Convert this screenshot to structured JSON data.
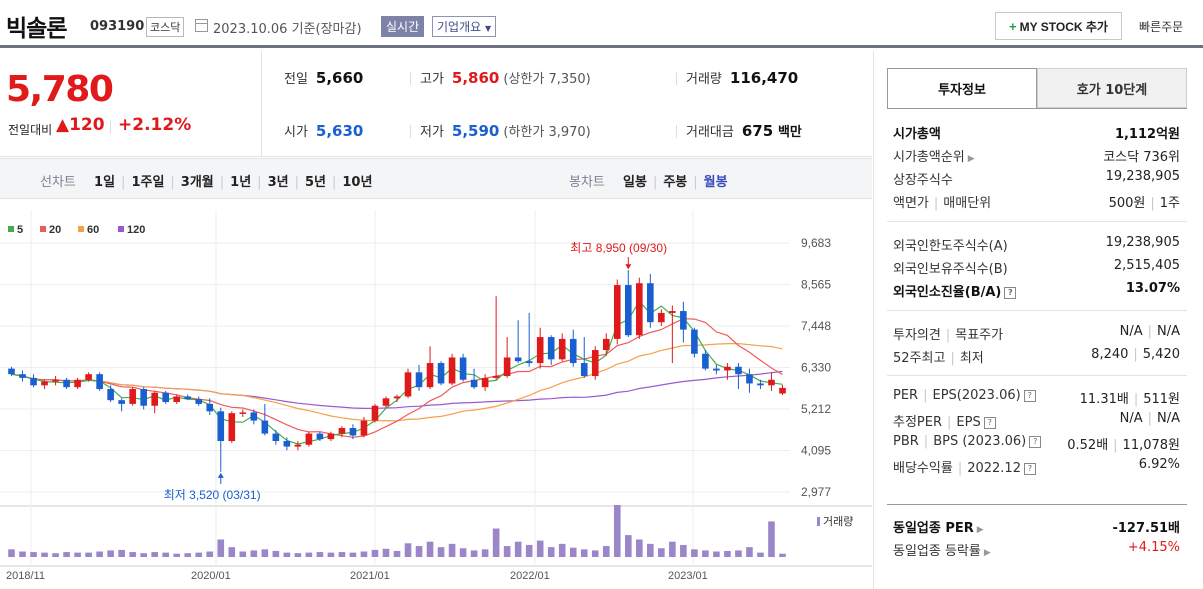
{
  "header": {
    "name": "빅솔론",
    "code": "093190",
    "market": "코스닥",
    "date": "2023.10.06",
    "basis": "기준(장마감)",
    "live": "실시간",
    "overview": "기업개요",
    "mystock": "MY STOCK 추가",
    "quick": "빠른주문"
  },
  "price": {
    "now": "5,780",
    "change_label": "전일대비",
    "change": "▲120",
    "change_pct": "+2.12%"
  },
  "stats": {
    "prev_label": "전일",
    "prev": "5,660",
    "high_label": "고가",
    "high": "5,860",
    "upper": "(상한가 7,350)",
    "volume_label": "거래량",
    "volume": "116,470",
    "open_label": "시가",
    "open": "5,630",
    "low_label": "저가",
    "low": "5,590",
    "lower": "(하한가 3,970)",
    "amount_label": "거래대금",
    "amount": "675",
    "amount_unit": "백만"
  },
  "period": {
    "line_title": "선차트",
    "line_items": [
      "1일",
      "1주일",
      "3개월",
      "1년",
      "3년",
      "5년",
      "10년"
    ],
    "candle_title": "봉차트",
    "candle_items": [
      "일봉",
      "주봉",
      "월봉"
    ],
    "candle_active": "월봉"
  },
  "chart_data": {
    "type": "candlestick",
    "legend": [
      "5",
      "20",
      "60",
      "120"
    ],
    "colors": {
      "up": "#e0191b",
      "down": "#1a5fd0",
      "ma5": "#3fae49",
      "ma20": "#f05a5a",
      "ma60": "#f5a04a",
      "ma120": "#9b59d0",
      "volume": "#9b86c9"
    },
    "y_ticks": [
      "9,683",
      "8,565",
      "7,448",
      "6,330",
      "5,212",
      "4,095",
      "2,977"
    ],
    "ylim": [
      2977,
      9683
    ],
    "x_ticks": [
      "2018/11",
      "2020/01",
      "2021/01",
      "2022/01",
      "2023/01"
    ],
    "high_annotation": "최고 8,950 (09/30)",
    "low_annotation": "최저 3,520 (03/31)",
    "volume_label": "거래량",
    "candles": [
      [
        6300,
        6350,
        6100,
        6150
      ],
      [
        6150,
        6250,
        5950,
        6050
      ],
      [
        6050,
        6150,
        5800,
        5850
      ],
      [
        5850,
        6000,
        5750,
        5950
      ],
      [
        5950,
        6100,
        5850,
        6000
      ],
      [
        6000,
        6050,
        5750,
        5800
      ],
      [
        5800,
        6050,
        5750,
        6000
      ],
      [
        6000,
        6200,
        5950,
        6150
      ],
      [
        6150,
        6200,
        5700,
        5750
      ],
      [
        5750,
        5850,
        5400,
        5450
      ],
      [
        5450,
        5500,
        5150,
        5350
      ],
      [
        5350,
        5800,
        5300,
        5750
      ],
      [
        5750,
        5800,
        5200,
        5300
      ],
      [
        5300,
        5700,
        5100,
        5650
      ],
      [
        5650,
        5700,
        5350,
        5400
      ],
      [
        5400,
        5600,
        5350,
        5550
      ],
      [
        5550,
        5600,
        5450,
        5480
      ],
      [
        5480,
        5550,
        5300,
        5350
      ],
      [
        5350,
        5500,
        5050,
        5150
      ],
      [
        5150,
        5250,
        3520,
        4350
      ],
      [
        4350,
        5150,
        4300,
        5100
      ],
      [
        5100,
        5200,
        5000,
        5120
      ],
      [
        5120,
        5200,
        4800,
        4900
      ],
      [
        4900,
        5350,
        4500,
        4550
      ],
      [
        4550,
        4650,
        4250,
        4350
      ],
      [
        4350,
        4450,
        4100,
        4200
      ],
      [
        4200,
        4350,
        4100,
        4250
      ],
      [
        4250,
        4600,
        4200,
        4550
      ],
      [
        4550,
        4600,
        4350,
        4400
      ],
      [
        4400,
        4600,
        4350,
        4550
      ],
      [
        4550,
        4750,
        4450,
        4700
      ],
      [
        4700,
        4800,
        4400,
        4500
      ],
      [
        4500,
        5000,
        4450,
        4900
      ],
      [
        4900,
        5350,
        4850,
        5300
      ],
      [
        5300,
        5550,
        5250,
        5500
      ],
      [
        5500,
        5600,
        5400,
        5550
      ],
      [
        5550,
        6300,
        5500,
        6200
      ],
      [
        6200,
        6400,
        5700,
        5800
      ],
      [
        5800,
        6900,
        5750,
        6450
      ],
      [
        6450,
        6500,
        5850,
        5900
      ],
      [
        5900,
        6700,
        5850,
        6600
      ],
      [
        6600,
        6700,
        5950,
        6000
      ],
      [
        6000,
        6300,
        5750,
        5800
      ],
      [
        5800,
        6150,
        5700,
        6050
      ],
      [
        6050,
        8250,
        6000,
        6100
      ],
      [
        6100,
        7150,
        6050,
        6600
      ],
      [
        6600,
        7600,
        6450,
        6500
      ],
      [
        6500,
        7800,
        6350,
        6450
      ],
      [
        6450,
        7400,
        6300,
        7150
      ],
      [
        7150,
        7200,
        6400,
        6550
      ],
      [
        6550,
        7250,
        6500,
        7100
      ],
      [
        7100,
        7350,
        6350,
        6450
      ],
      [
        6450,
        7150,
        6050,
        6100
      ],
      [
        6100,
        6900,
        6000,
        6800
      ],
      [
        6800,
        7250,
        6650,
        7100
      ],
      [
        7100,
        8700,
        6950,
        8550
      ],
      [
        8550,
        8950,
        7150,
        7200
      ],
      [
        7200,
        8750,
        7100,
        8600
      ],
      [
        8600,
        8850,
        7400,
        7550
      ],
      [
        7550,
        7900,
        7450,
        7800
      ],
      [
        7800,
        8000,
        6450,
        7850
      ],
      [
        7850,
        8100,
        7000,
        7350
      ],
      [
        7350,
        7400,
        6600,
        6700
      ],
      [
        6700,
        6800,
        6250,
        6300
      ],
      [
        6300,
        6400,
        6150,
        6250
      ],
      [
        6250,
        6450,
        6000,
        6350
      ],
      [
        6350,
        6450,
        5750,
        6150
      ],
      [
        6150,
        6300,
        5650,
        5900
      ],
      [
        5900,
        6000,
        5750,
        5850
      ],
      [
        5850,
        6200,
        5700,
        6000
      ],
      [
        5630,
        5860,
        5590,
        5780
      ]
    ],
    "volumes": [
      14,
      10,
      9,
      8,
      7,
      9,
      8,
      8,
      10,
      12,
      13,
      9,
      7,
      9,
      8,
      6,
      7,
      8,
      10,
      32,
      18,
      10,
      12,
      14,
      11,
      8,
      7,
      8,
      9,
      8,
      9,
      8,
      10,
      13,
      15,
      11,
      25,
      20,
      28,
      18,
      24,
      16,
      12,
      14,
      52,
      20,
      28,
      22,
      30,
      18,
      24,
      17,
      14,
      12,
      20,
      95,
      40,
      32,
      24,
      16,
      28,
      22,
      14,
      12,
      10,
      11,
      12,
      18,
      8,
      65,
      6
    ]
  },
  "panel": {
    "tab_on": "투자정보",
    "tab_off": "호가 10단계",
    "g1": [
      {
        "k": "시가총액",
        "v": "1,112억원",
        "bold": true
      },
      {
        "k": "시가총액순위",
        "v": "코스닥 736위",
        "arrow": true
      },
      {
        "k": "상장주식수",
        "v": "19,238,905"
      },
      {
        "k": "액면가",
        "k2": "매매단위",
        "v": "500원",
        "v2": "1주"
      }
    ],
    "g2": [
      {
        "k": "외국인한도주식수(A)",
        "v": "19,238,905"
      },
      {
        "k": "외국인보유주식수(B)",
        "v": "2,515,405"
      },
      {
        "k": "외국인소진율(B/A)",
        "v": "13.07%",
        "bold": true,
        "qm": true
      }
    ],
    "g3": [
      {
        "k": "투자의견",
        "k2": "목표주가",
        "v": "N/A",
        "v2": "N/A"
      },
      {
        "k": "52주최고",
        "k2": "최저",
        "v": "8,240",
        "v2": "5,420"
      }
    ],
    "g4": [
      {
        "k": "PER",
        "k2": "EPS(2023.06)",
        "v": "11.31배",
        "v2": "511원",
        "qm": true
      },
      {
        "k": "추정PER",
        "k2": "EPS",
        "v": "N/A",
        "v2": "N/A",
        "qm": true
      },
      {
        "k": "PBR",
        "k2": "BPS (2023.06)",
        "v": "0.52배",
        "v2": "11,078원",
        "qm": true
      },
      {
        "k": "배당수익률",
        "k2": "2022.12",
        "v": "6.92%",
        "qm": true
      }
    ],
    "g5": [
      {
        "k": "동일업종 PER",
        "v": "-127.51배",
        "bold": true,
        "arrow": true
      },
      {
        "k": "동일업종 등락률",
        "v": "+4.15%",
        "arrow": true,
        "red": true
      }
    ]
  }
}
